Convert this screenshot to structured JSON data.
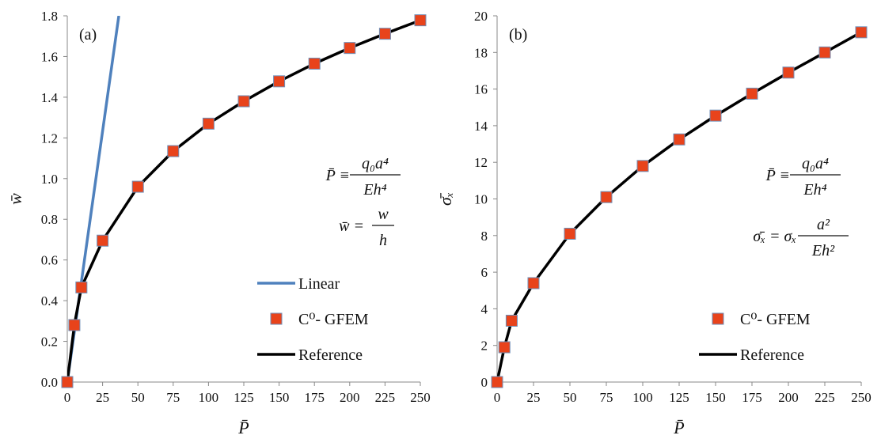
{
  "chart_data": [
    {
      "type": "line",
      "panel_label": "(a)",
      "xlabel": "P̄",
      "ylabel": "w̄",
      "xlim": [
        0,
        250
      ],
      "ylim": [
        0,
        1.8
      ],
      "xticks": [
        "0",
        "25",
        "50",
        "75",
        "100",
        "125",
        "150",
        "175",
        "200",
        "225",
        "250"
      ],
      "yticks": [
        "0.0",
        "0.2",
        "0.4",
        "0.6",
        "0.8",
        "1.0",
        "1.2",
        "1.4",
        "1.6",
        "1.8"
      ],
      "grid": false,
      "annotations": {
        "eq1_lhs": "P̄ ≡",
        "eq1_num": "q₀a⁴",
        "eq1_den": "Eh⁴",
        "eq2_lhs": "w̄ =",
        "eq2_num": "w",
        "eq2_den": "h"
      },
      "legend": {
        "placement": "bottom-right",
        "entries": [
          "Linear",
          "C⁰- GFEM",
          "Reference"
        ]
      },
      "series": [
        {
          "name": "Linear",
          "style": "line",
          "color": "#4f81bd",
          "x": [
            0,
            36.5
          ],
          "y": [
            0,
            1.8
          ]
        },
        {
          "name": "C⁰- GFEM",
          "style": "marker",
          "color": "#e8431b",
          "x": [
            0,
            5,
            10,
            25,
            50,
            75,
            100,
            125,
            150,
            175,
            200,
            225,
            250
          ],
          "y": [
            0.0,
            0.28,
            0.465,
            0.695,
            0.96,
            1.135,
            1.27,
            1.38,
            1.478,
            1.565,
            1.642,
            1.712,
            1.778
          ]
        },
        {
          "name": "Reference",
          "style": "line",
          "color": "#000000",
          "x": [
            0,
            5,
            10,
            25,
            50,
            75,
            100,
            125,
            150,
            175,
            200,
            225,
            250
          ],
          "y": [
            0.0,
            0.28,
            0.465,
            0.695,
            0.96,
            1.135,
            1.27,
            1.38,
            1.478,
            1.565,
            1.642,
            1.712,
            1.778
          ]
        }
      ]
    },
    {
      "type": "line",
      "panel_label": "(b)",
      "xlabel": "P̄",
      "ylabel": "σ̄ₓ",
      "xlim": [
        0,
        250
      ],
      "ylim": [
        0,
        20
      ],
      "xticks": [
        "0",
        "25",
        "50",
        "75",
        "100",
        "125",
        "150",
        "175",
        "200",
        "225",
        "250"
      ],
      "yticks": [
        "0",
        "2",
        "4",
        "6",
        "8",
        "10",
        "12",
        "14",
        "16",
        "18",
        "20"
      ],
      "grid": false,
      "annotations": {
        "eq1_lhs": "P̄ ≡",
        "eq1_num": "q₀a⁴",
        "eq1_den": "Eh⁴",
        "eq2_lhs": "σ̄ₓ = σₓ",
        "eq2_num": "a²",
        "eq2_den": "Eh²"
      },
      "legend": {
        "placement": "bottom-right",
        "entries": [
          "C⁰- GFEM",
          "Reference"
        ]
      },
      "series": [
        {
          "name": "C⁰- GFEM",
          "style": "marker",
          "color": "#e8431b",
          "x": [
            0,
            5,
            10,
            25,
            50,
            75,
            100,
            125,
            150,
            175,
            200,
            225,
            250
          ],
          "y": [
            0.0,
            1.9,
            3.35,
            5.4,
            8.1,
            10.1,
            11.8,
            13.25,
            14.55,
            15.75,
            16.9,
            18.0,
            19.1
          ]
        },
        {
          "name": "Reference",
          "style": "line",
          "color": "#000000",
          "x": [
            0,
            5,
            10,
            25,
            50,
            75,
            100,
            125,
            150,
            175,
            200,
            225,
            250
          ],
          "y": [
            0.0,
            1.9,
            3.35,
            5.4,
            8.1,
            10.1,
            11.8,
            13.25,
            14.55,
            15.75,
            16.9,
            18.0,
            19.1
          ]
        }
      ]
    }
  ]
}
